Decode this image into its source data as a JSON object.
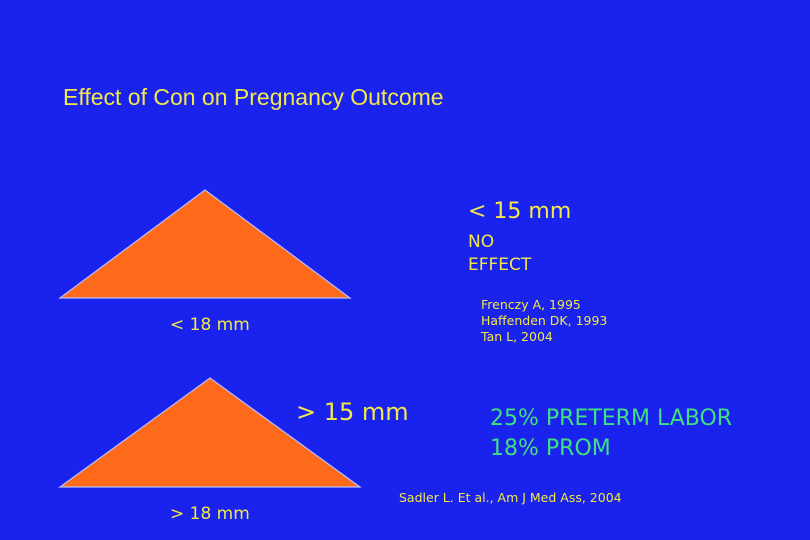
{
  "slide": {
    "title": "Effect of Con  on Pregnancy Outcome",
    "upper": {
      "threshold_label": "< 15 mm",
      "effect_line1": "NO",
      "effect_line2": "EFFECT",
      "triangle_label": "< 18 mm",
      "references": [
        "Frenczy A, 1995",
        "Haffenden DK, 1993",
        "Tan L, 2004"
      ]
    },
    "lower": {
      "threshold_label": "> 15 mm",
      "outcome_line1": "25% PRETERM  LABOR",
      "outcome_line2": "18%  PROM",
      "triangle_label": "> 18 mm",
      "reference": "Sadler L. Et al., Am J Med Ass, 2004"
    },
    "colors": {
      "background": "#1a22ee",
      "title_text": "#f2e84a",
      "label_text": "#f2e84a",
      "outcome_text": "#40e080",
      "triangle_fill": "#ff6a1a"
    }
  }
}
